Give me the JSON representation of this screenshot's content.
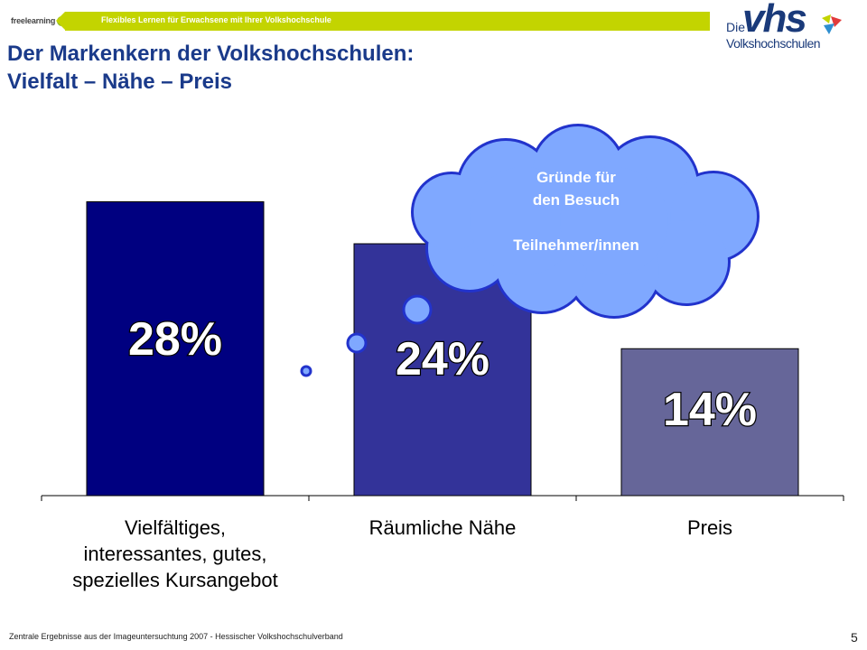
{
  "header": {
    "logo_text": "freelearning",
    "logo_badge": "vhs",
    "tagline": "Flexibles Lernen für Erwachsene mit Ihrer Volkshochschule"
  },
  "brand": {
    "die": "Die",
    "vhs": "vhs",
    "name": "Volkshochschulen"
  },
  "title": {
    "line1": "Der Markenkern der Volkshochschulen:",
    "line2": "Vielfalt – Nähe – Preis"
  },
  "cloud": {
    "line1": "Gründe für",
    "line2": "den Besuch",
    "line3": "Teilnehmer/innen"
  },
  "chart_data": {
    "type": "bar",
    "categories": [
      [
        "Vielfältiges,",
        "interessantes, gutes,",
        "spezielles Kursangebot"
      ],
      [
        "Räumliche Nähe"
      ],
      [
        "Preis"
      ]
    ],
    "values": [
      28,
      24,
      14
    ],
    "value_labels": [
      "28%",
      "24%",
      "14%"
    ],
    "colors": [
      "#000080",
      "#333399",
      "#666699"
    ],
    "ylim": [
      0,
      32
    ],
    "grid": false,
    "legend": "none"
  },
  "footer": {
    "source": "Zentrale Ergebnisse aus der Imageuntersuchtung 2007 - Hessischer Volkshochschulverband",
    "page": "5"
  },
  "colors": {
    "title": "#1a3a8a",
    "band": "#c3d400",
    "cloud_fill": "#7fa8ff",
    "cloud_stroke": "#2233cc"
  }
}
